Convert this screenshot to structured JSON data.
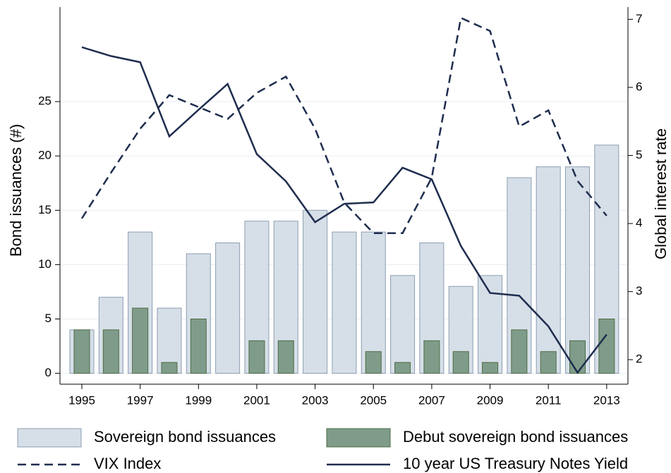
{
  "chart_data": {
    "type": "bar",
    "x": [
      1995,
      1996,
      1997,
      1998,
      1999,
      2000,
      2001,
      2002,
      2003,
      2004,
      2005,
      2006,
      2007,
      2008,
      2009,
      2010,
      2011,
      2012,
      2013
    ],
    "xlim": [
      1994.25,
      2013.73
    ],
    "xticks": [
      1995,
      1997,
      1999,
      2001,
      2003,
      2005,
      2007,
      2009,
      2011,
      2013
    ],
    "ylabel": "Bond issuances (#)",
    "y2label": "Global interest rate",
    "ylim": [
      -1,
      33.7
    ],
    "yticks": [
      0,
      5,
      10,
      15,
      20,
      25
    ],
    "y2lim": [
      1.64,
      7.18
    ],
    "y2ticks": [
      2,
      3,
      4,
      5,
      6,
      7
    ],
    "grid": true,
    "series": [
      {
        "name": "Sovereign bond issuances",
        "type": "bar",
        "color": "#d6dfe8",
        "values": [
          4,
          7,
          13,
          6,
          11,
          12,
          14,
          14,
          15,
          13,
          13,
          9,
          12,
          8,
          9,
          18,
          19,
          19,
          21
        ]
      },
      {
        "name": "Debut sovereign bond issuances",
        "type": "bar",
        "color": "#7f9c8a",
        "values": [
          4,
          4,
          6,
          1,
          5,
          0,
          3,
          3,
          0,
          0,
          2,
          1,
          3,
          2,
          1,
          4,
          2,
          3,
          5
        ]
      },
      {
        "name": "VIX Index",
        "type": "line",
        "line_style": "dashed",
        "color": "#1f2d4e",
        "values": [
          14.25,
          18.46,
          22.5,
          25.6,
          24.5,
          23.4,
          25.8,
          27.3,
          22.5,
          15.7,
          12.9,
          12.9,
          18.0,
          32.7,
          31.5,
          22.7,
          24.2,
          17.7,
          14.5
        ]
      },
      {
        "name": "10 year US Treasury Notes Yield",
        "type": "line",
        "line_style": "solid",
        "axis": "y2",
        "color": "#1f2d4e",
        "values": [
          6.59,
          6.46,
          6.37,
          5.28,
          5.67,
          6.05,
          5.02,
          4.62,
          4.02,
          4.29,
          4.31,
          4.82,
          4.65,
          3.67,
          2.98,
          2.94,
          2.49,
          1.81,
          2.37
        ]
      }
    ]
  }
}
